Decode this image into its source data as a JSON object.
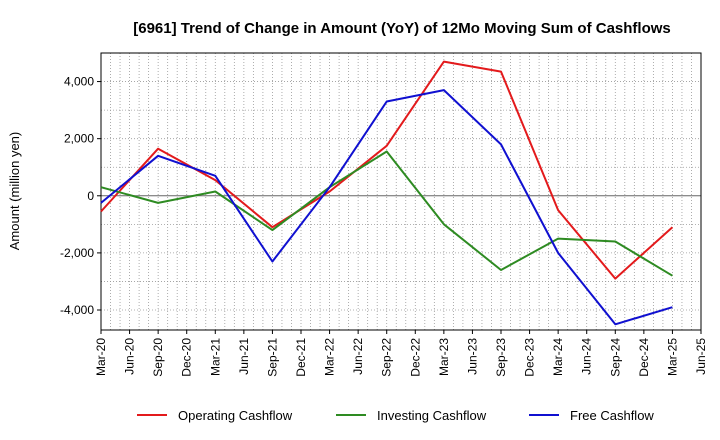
{
  "chart_data": {
    "type": "line",
    "title": "[6961]  Trend of Change in Amount (YoY) of 12Mo Moving Sum of Cashflows",
    "ylabel": "Amount (million yen)",
    "xlabel": "",
    "ylim": [
      -4700,
      5000
    ],
    "yticks": [
      -4000,
      -2000,
      0,
      2000,
      4000
    ],
    "ytick_labels": [
      "-4,000",
      "-2,000",
      "0",
      "2,000",
      "4,000"
    ],
    "categories": [
      "Mar-20",
      "Jun-20",
      "Sep-20",
      "Dec-20",
      "Mar-21",
      "Jun-21",
      "Sep-21",
      "Dec-21",
      "Mar-22",
      "Jun-22",
      "Sep-22",
      "Dec-22",
      "Mar-23",
      "Jun-23",
      "Sep-23",
      "Dec-23",
      "Mar-24",
      "Jun-24",
      "Sep-24",
      "Dec-24",
      "Mar-25",
      "Jun-25"
    ],
    "grid": true,
    "legend_position": "bottom",
    "series": [
      {
        "name": "Operating Cashflow",
        "color": "#e31a1c",
        "points": [
          [
            0,
            -550
          ],
          [
            2,
            1650
          ],
          [
            4,
            550
          ],
          [
            6,
            -1100
          ],
          [
            8,
            150
          ],
          [
            10,
            1750
          ],
          [
            12,
            4700
          ],
          [
            14,
            4350
          ],
          [
            16,
            -500
          ],
          [
            18,
            -2900
          ],
          [
            20,
            -1100
          ]
        ]
      },
      {
        "name": "Investing Cashflow",
        "color": "#2e8b22",
        "points": [
          [
            0,
            300
          ],
          [
            2,
            -250
          ],
          [
            4,
            150
          ],
          [
            6,
            -1200
          ],
          [
            8,
            300
          ],
          [
            10,
            1550
          ],
          [
            12,
            -1000
          ],
          [
            14,
            -2600
          ],
          [
            16,
            -1500
          ],
          [
            18,
            -1600
          ],
          [
            20,
            -2800
          ]
        ]
      },
      {
        "name": "Free Cashflow",
        "color": "#1010d0",
        "points": [
          [
            0,
            -250
          ],
          [
            2,
            1400
          ],
          [
            4,
            700
          ],
          [
            6,
            -2300
          ],
          [
            8,
            300
          ],
          [
            10,
            3300
          ],
          [
            12,
            3700
          ],
          [
            14,
            1800
          ],
          [
            16,
            -2000
          ],
          [
            18,
            -4500
          ],
          [
            20,
            -3900
          ]
        ]
      }
    ]
  }
}
